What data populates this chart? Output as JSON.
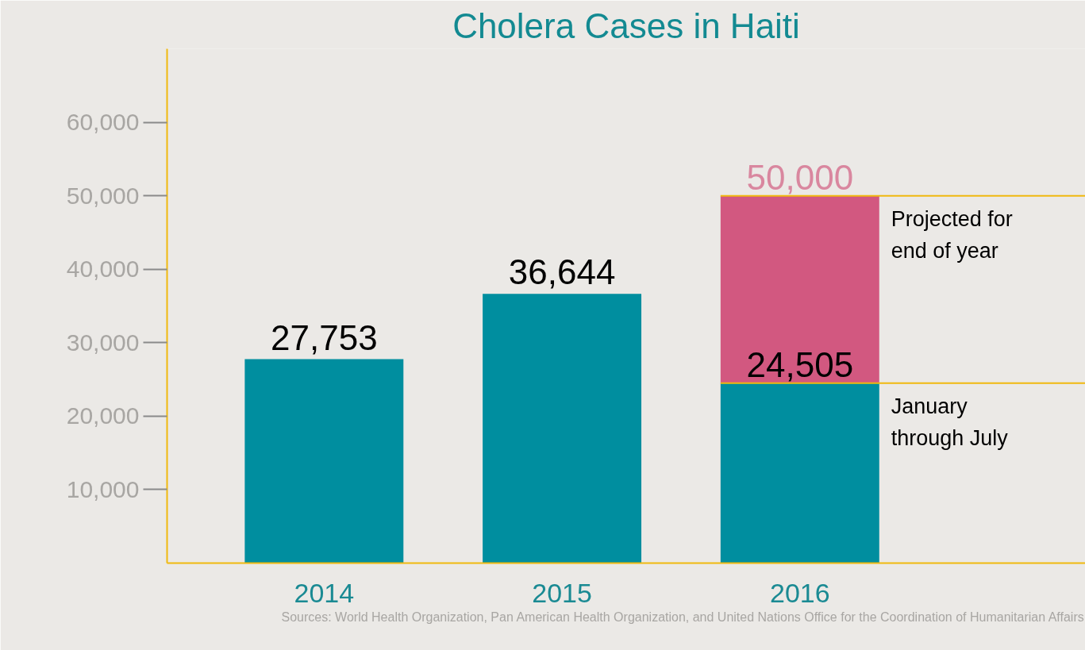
{
  "chart_data": {
    "type": "bar",
    "title": "Cholera Cases in Haiti",
    "categories": [
      "2014",
      "2015",
      "2016"
    ],
    "stacked": true,
    "series": [
      {
        "color": "#008e9f",
        "values": [
          27753,
          36644,
          24505
        ],
        "value_labels": [
          "27,753",
          "36,644",
          "24,505"
        ]
      },
      {
        "color": "#d25880",
        "values": [
          null,
          null,
          25495
        ]
      }
    ],
    "totals": [
      null,
      null,
      "50,000"
    ],
    "ylim": [
      0,
      70000
    ],
    "yticks": [
      {
        "value": 10000,
        "label": "10,000"
      },
      {
        "value": 20000,
        "label": "20,000"
      },
      {
        "value": 30000,
        "label": "30,000"
      },
      {
        "value": 40000,
        "label": "40,000"
      },
      {
        "value": 50000,
        "label": "50,000"
      },
      {
        "value": 60000,
        "label": "60,000"
      }
    ],
    "ref_lines": [
      {
        "axis": "y",
        "value": 50000,
        "label": "Projected for\nend of year",
        "color": "#f0b90f"
      },
      {
        "axis": "y",
        "value": 24505,
        "label": "January\nthrough July",
        "color": "#f0b90f"
      }
    ],
    "annotations": [
      "Sources: World Health Organization, Pan American Health Organization, and United Nations Office for the Coordination of Humanitarian Affairs"
    ],
    "grid": false
  }
}
